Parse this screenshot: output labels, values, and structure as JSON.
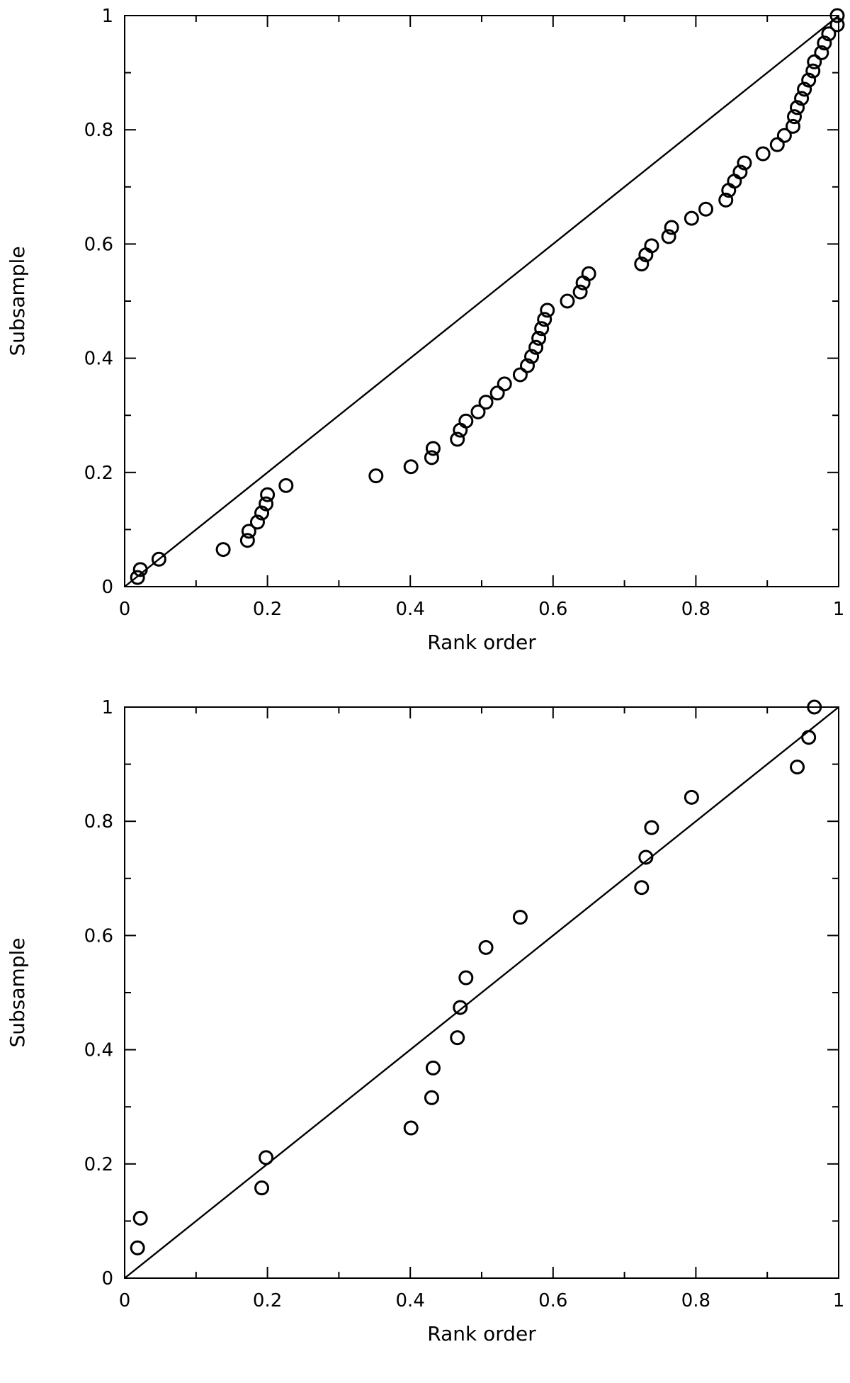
{
  "chart_data": [
    {
      "type": "scatter",
      "title": "",
      "xlabel": "Rank order",
      "ylabel": "Subsample",
      "xlim": [
        0,
        1
      ],
      "ylim": [
        0,
        1
      ],
      "xticks": [
        "0",
        "0.2",
        "0.4",
        "0.6",
        "0.8",
        "1"
      ],
      "yticks": [
        "0",
        "0.2",
        "0.4",
        "0.6",
        "0.8",
        "1"
      ],
      "grid": false,
      "reference_line": {
        "from": [
          0,
          0
        ],
        "to": [
          1,
          1
        ]
      },
      "series": [
        {
          "points": [
            [
              0.018,
              0.016
            ],
            [
              0.022,
              0.03
            ],
            [
              0.048,
              0.048
            ],
            [
              0.138,
              0.065
            ],
            [
              0.172,
              0.081
            ],
            [
              0.174,
              0.097
            ],
            [
              0.186,
              0.113
            ],
            [
              0.192,
              0.129
            ],
            [
              0.198,
              0.145
            ],
            [
              0.2,
              0.161
            ],
            [
              0.226,
              0.177
            ],
            [
              0.352,
              0.194
            ],
            [
              0.401,
              0.21
            ],
            [
              0.43,
              0.226
            ],
            [
              0.432,
              0.242
            ],
            [
              0.466,
              0.258
            ],
            [
              0.47,
              0.274
            ],
            [
              0.478,
              0.29
            ],
            [
              0.495,
              0.306
            ],
            [
              0.506,
              0.323
            ],
            [
              0.522,
              0.339
            ],
            [
              0.532,
              0.355
            ],
            [
              0.554,
              0.371
            ],
            [
              0.564,
              0.387
            ],
            [
              0.57,
              0.403
            ],
            [
              0.576,
              0.419
            ],
            [
              0.58,
              0.435
            ],
            [
              0.584,
              0.452
            ],
            [
              0.588,
              0.468
            ],
            [
              0.592,
              0.484
            ],
            [
              0.62,
              0.5
            ],
            [
              0.638,
              0.516
            ],
            [
              0.642,
              0.532
            ],
            [
              0.65,
              0.548
            ],
            [
              0.724,
              0.565
            ],
            [
              0.73,
              0.581
            ],
            [
              0.738,
              0.597
            ],
            [
              0.762,
              0.613
            ],
            [
              0.766,
              0.629
            ],
            [
              0.794,
              0.645
            ],
            [
              0.814,
              0.661
            ],
            [
              0.842,
              0.677
            ],
            [
              0.846,
              0.694
            ],
            [
              0.854,
              0.71
            ],
            [
              0.862,
              0.726
            ],
            [
              0.868,
              0.742
            ],
            [
              0.894,
              0.758
            ],
            [
              0.914,
              0.774
            ],
            [
              0.924,
              0.79
            ],
            [
              0.936,
              0.806
            ],
            [
              0.938,
              0.823
            ],
            [
              0.942,
              0.839
            ],
            [
              0.948,
              0.855
            ],
            [
              0.952,
              0.871
            ],
            [
              0.958,
              0.887
            ],
            [
              0.964,
              0.903
            ],
            [
              0.966,
              0.919
            ],
            [
              0.976,
              0.935
            ],
            [
              0.98,
              0.952
            ],
            [
              0.986,
              0.968
            ],
            [
              0.998,
              0.984
            ],
            [
              0.998,
              1.0
            ]
          ]
        }
      ]
    },
    {
      "type": "scatter",
      "title": "",
      "xlabel": "Rank order",
      "ylabel": "Subsample",
      "xlim": [
        0,
        1
      ],
      "ylim": [
        0,
        1
      ],
      "xticks": [
        "0",
        "0.2",
        "0.4",
        "0.6",
        "0.8",
        "1"
      ],
      "yticks": [
        "0",
        "0.2",
        "0.4",
        "0.6",
        "0.8",
        "1"
      ],
      "grid": false,
      "reference_line": {
        "from": [
          0,
          0
        ],
        "to": [
          1,
          1
        ]
      },
      "series": [
        {
          "points": [
            [
              0.018,
              0.053
            ],
            [
              0.022,
              0.105
            ],
            [
              0.192,
              0.158
            ],
            [
              0.198,
              0.211
            ],
            [
              0.401,
              0.263
            ],
            [
              0.43,
              0.316
            ],
            [
              0.432,
              0.368
            ],
            [
              0.466,
              0.421
            ],
            [
              0.47,
              0.474
            ],
            [
              0.478,
              0.526
            ],
            [
              0.506,
              0.579
            ],
            [
              0.554,
              0.632
            ],
            [
              0.724,
              0.684
            ],
            [
              0.73,
              0.737
            ],
            [
              0.738,
              0.789
            ],
            [
              0.794,
              0.842
            ],
            [
              0.942,
              0.895
            ],
            [
              0.958,
              0.947
            ],
            [
              0.966,
              1.0
            ]
          ]
        }
      ]
    }
  ]
}
